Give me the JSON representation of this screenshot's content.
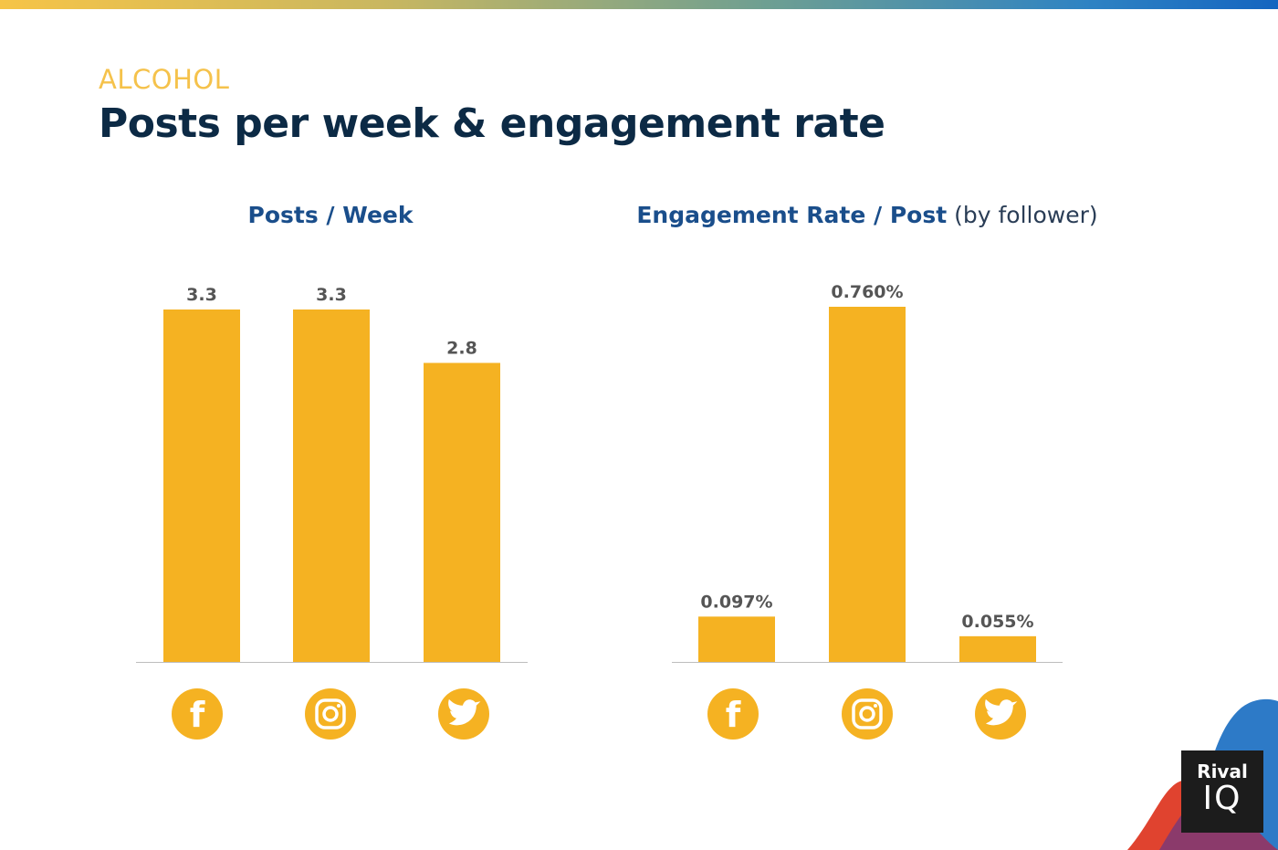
{
  "header": {
    "category": "ALCOHOL",
    "title": "Posts per week & engagement rate"
  },
  "chart_data": [
    {
      "type": "bar",
      "title": "Posts / Week",
      "subtitle": "",
      "categories": [
        "facebook",
        "instagram",
        "twitter"
      ],
      "values": [
        3.3,
        3.3,
        2.8
      ],
      "labels": [
        "3.3",
        "3.3",
        "2.8"
      ],
      "ylim": [
        0,
        3.3
      ],
      "grid": false,
      "bar_color": "#f5b222"
    },
    {
      "type": "bar",
      "title": "Engagement Rate / Post",
      "subtitle": "(by follower)",
      "categories": [
        "facebook",
        "instagram",
        "twitter"
      ],
      "values": [
        0.097,
        0.76,
        0.055
      ],
      "labels": [
        "0.097%",
        "0.760%",
        "0.055%"
      ],
      "ylim": [
        0,
        0.76
      ],
      "grid": false,
      "bar_color": "#f5b222"
    }
  ],
  "icons": [
    "facebook-icon",
    "instagram-icon",
    "twitter-icon"
  ],
  "logo": {
    "top": "Rival",
    "bottom": "IQ"
  },
  "colors": {
    "accent": "#f5b222",
    "category": "#f5c24b",
    "title": "#0c2a45",
    "chart_title": "#1a4e8b"
  }
}
